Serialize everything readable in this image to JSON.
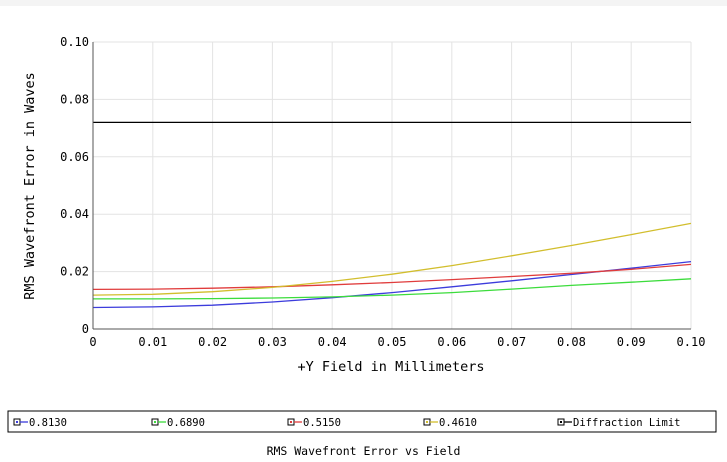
{
  "chart_data": {
    "type": "line",
    "title": "RMS Wavefront Error vs Field",
    "xlabel": "+Y Field in Millimeters",
    "ylabel": "RMS Wavefront Error in Waves",
    "xlim": [
      0,
      0.1
    ],
    "ylim": [
      0,
      0.1
    ],
    "x_ticks": [
      "0",
      "0.01",
      "0.02",
      "0.03",
      "0.04",
      "0.05",
      "0.06",
      "0.07",
      "0.08",
      "0.09",
      "0.10"
    ],
    "y_ticks": [
      "0",
      "0.02",
      "0.04",
      "0.06",
      "0.08",
      "0.10"
    ],
    "grid": true,
    "legend_position": "bottom",
    "x": [
      0,
      0.01,
      0.02,
      0.03,
      0.04,
      0.05,
      0.06,
      0.07,
      0.08,
      0.09,
      0.1
    ],
    "series": [
      {
        "name": "0.8130",
        "color": "#3c3cdc",
        "values": [
          0.0075,
          0.0077,
          0.0083,
          0.0094,
          0.0109,
          0.0127,
          0.0147,
          0.0168,
          0.019,
          0.0212,
          0.0235
        ]
      },
      {
        "name": "0.6890",
        "color": "#3cdc3c",
        "values": [
          0.0105,
          0.0105,
          0.0106,
          0.0108,
          0.0112,
          0.0118,
          0.0127,
          0.0139,
          0.0152,
          0.0163,
          0.0175
        ]
      },
      {
        "name": "0.5150",
        "color": "#e03c3c",
        "values": [
          0.0138,
          0.0139,
          0.0142,
          0.0147,
          0.0154,
          0.0162,
          0.0172,
          0.0183,
          0.0194,
          0.0208,
          0.0225
        ]
      },
      {
        "name": "0.4610",
        "color": "#d2be2d",
        "values": [
          0.0118,
          0.0121,
          0.013,
          0.0145,
          0.0166,
          0.0191,
          0.0221,
          0.0255,
          0.0291,
          0.0329,
          0.0368
        ]
      },
      {
        "name": "Diffraction Limit",
        "color": "#000000",
        "values": [
          0.072,
          0.072,
          0.072,
          0.072,
          0.072,
          0.072,
          0.072,
          0.072,
          0.072,
          0.072,
          0.072
        ]
      }
    ]
  }
}
